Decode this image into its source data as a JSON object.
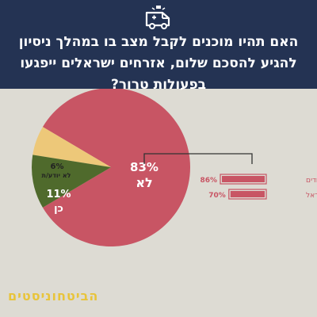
{
  "header": {
    "title": "האם תהיו מוכנים לקבל מצב בו במהלך ניסיון להגיע להסכם שלום, אזרחים ישראלים ייפגעו בפעולות טרור?",
    "icon": "ambulance-icon",
    "background": "#243353"
  },
  "logo_text": "הביטחוניסטים",
  "colors": {
    "yes": "#c85564",
    "no": "#4f6a2c",
    "dont_know": "#edc879",
    "background": "#dddbd3"
  },
  "chart_data": [
    {
      "type": "pie",
      "slices": [
        {
          "label": "לא",
          "value": 83,
          "value_label": "83%",
          "color": "#c85564"
        },
        {
          "label": "כן",
          "value": 11,
          "value_label": "11%",
          "color": "#4f6a2c"
        },
        {
          "label": "לא יודע/ת",
          "value": 6,
          "value_label": "6%",
          "color": "#edc879"
        }
      ]
    },
    {
      "type": "bar",
      "orientation": "horizontal",
      "categories": [
        "יהודים",
        "ערביי ישראל"
      ],
      "values": [
        86,
        70
      ],
      "value_labels": [
        "86%",
        "70%"
      ],
      "color": "#c85564",
      "xlim": [
        0,
        100
      ]
    }
  ]
}
